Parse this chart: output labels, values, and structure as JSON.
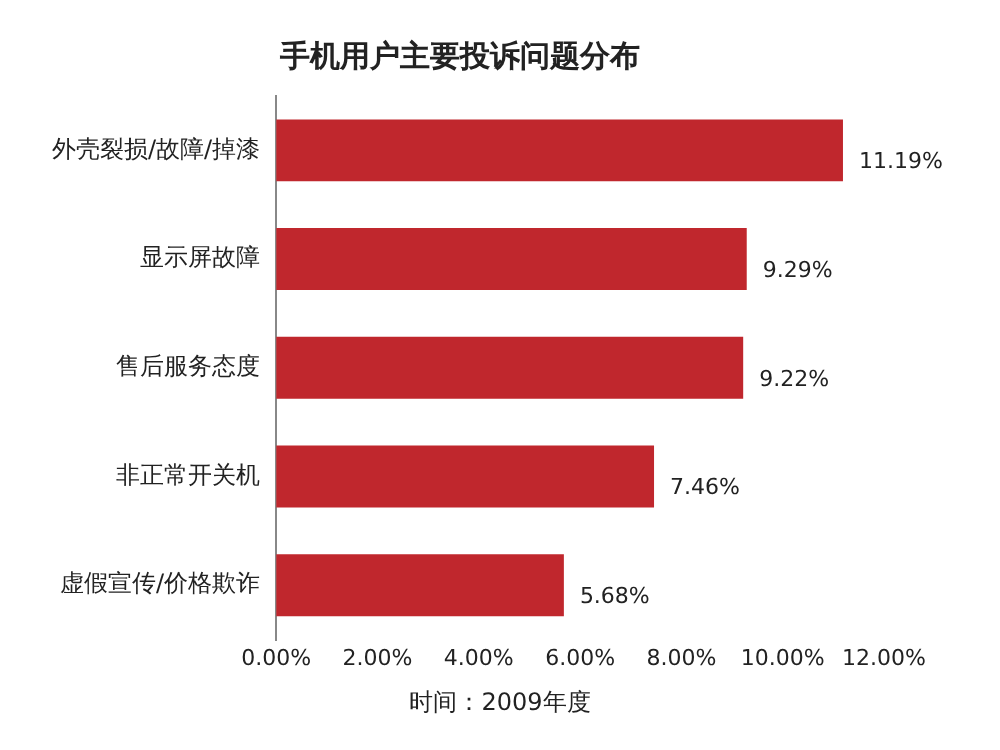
{
  "chart_data": {
    "type": "bar",
    "orientation": "horizontal",
    "title": "手机用户主要投诉问题分布",
    "categories": [
      "外壳裂损/故障/掉漆",
      "显示屏故障",
      "售后服务态度",
      "非正常开关机",
      "虚假宣传/价格欺诈"
    ],
    "values": [
      11.19,
      9.29,
      9.22,
      7.46,
      5.68
    ],
    "color": "#c0272d",
    "value_labels": [
      "11.19%",
      "9.29%",
      "9.22%",
      "7.46%",
      "5.68%"
    ],
    "xlim": [
      0,
      12
    ],
    "xticks": [
      {
        "value": 0,
        "label": "0.00%"
      },
      {
        "value": 2,
        "label": "2.00%"
      },
      {
        "value": 4,
        "label": "4.00%"
      },
      {
        "value": 6,
        "label": "6.00%"
      },
      {
        "value": 8,
        "label": "8.00%"
      },
      {
        "value": 10,
        "label": "10.00%"
      },
      {
        "value": 12,
        "label": "12.00%"
      }
    ],
    "grid": false,
    "legend": false,
    "annotations": [
      "时间：2009年度"
    ]
  }
}
